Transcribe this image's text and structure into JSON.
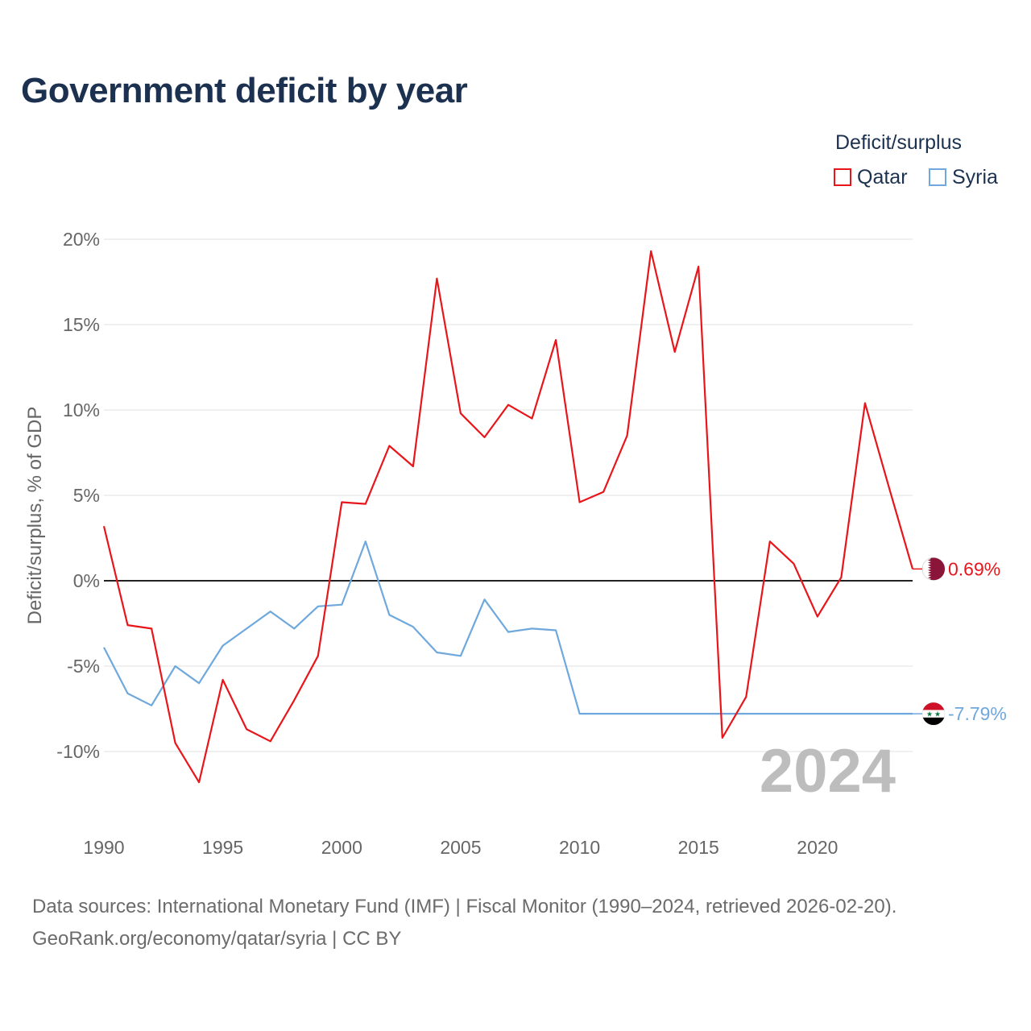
{
  "title": "Government deficit by year",
  "legend": {
    "title": "Deficit/surplus",
    "items": [
      {
        "name": "Qatar",
        "color": "#e8161b"
      },
      {
        "name": "Syria",
        "color": "#6fa8dc"
      }
    ]
  },
  "chart_data": {
    "type": "line",
    "title": "Government deficit by year",
    "ylabel": "Deficit/surplus, % of GDP",
    "xlabel": "",
    "xlim": [
      1990,
      2024
    ],
    "ylim": [
      -14,
      20
    ],
    "yticks": [
      20,
      15,
      10,
      5,
      0,
      -5,
      -10
    ],
    "ytick_labels": [
      "20%",
      "15%",
      "10%",
      "5%",
      "0%",
      "-5%",
      "-10%"
    ],
    "xticks": [
      1990,
      1995,
      2000,
      2005,
      2010,
      2015,
      2020
    ],
    "xtick_labels": [
      "1990",
      "1995",
      "2000",
      "2005",
      "2010",
      "2015",
      "2020"
    ],
    "grid": true,
    "year_watermark": "2024",
    "x": [
      1990,
      1991,
      1992,
      1993,
      1994,
      1995,
      1996,
      1997,
      1998,
      1999,
      2000,
      2001,
      2002,
      2003,
      2004,
      2005,
      2006,
      2007,
      2008,
      2009,
      2010,
      2011,
      2012,
      2013,
      2014,
      2015,
      2016,
      2017,
      2018,
      2019,
      2020,
      2021,
      2022,
      2023,
      2024
    ],
    "series": [
      {
        "name": "Qatar",
        "color": "#e8161b",
        "end_label": "0.69%",
        "flag_icon": "qatar-flag-icon",
        "values": [
          3.2,
          -2.6,
          -2.8,
          -9.5,
          -11.8,
          -5.8,
          -8.7,
          -9.4,
          -7.0,
          -4.4,
          4.6,
          4.5,
          7.9,
          6.7,
          17.7,
          9.8,
          8.4,
          10.3,
          9.5,
          14.1,
          4.6,
          5.2,
          8.5,
          19.3,
          13.4,
          18.4,
          -9.2,
          -6.8,
          2.3,
          1.0,
          -2.1,
          0.2,
          10.4,
          5.5,
          0.69
        ]
      },
      {
        "name": "Syria",
        "color": "#6fa8dc",
        "end_label": "-7.79%",
        "flag_icon": "syria-flag-icon",
        "values": [
          -3.9,
          -6.6,
          -7.3,
          -5.0,
          -6.0,
          -3.8,
          -2.8,
          -1.8,
          -2.8,
          -1.5,
          -1.4,
          2.3,
          -2.0,
          -2.7,
          -4.2,
          -4.4,
          -1.1,
          -3.0,
          -2.8,
          -2.9,
          -7.79,
          -7.79,
          -7.79,
          -7.79,
          -7.79,
          -7.79,
          -7.79,
          -7.79,
          -7.79,
          -7.79,
          -7.79,
          -7.79,
          -7.79,
          -7.79,
          -7.79
        ]
      }
    ]
  },
  "footer": {
    "line1": "Data sources: International Monetary Fund (IMF) | Fiscal Monitor (1990–2024, retrieved 2026-02-20).",
    "line2": "GeoRank.org/economy/qatar/syria | CC BY"
  }
}
